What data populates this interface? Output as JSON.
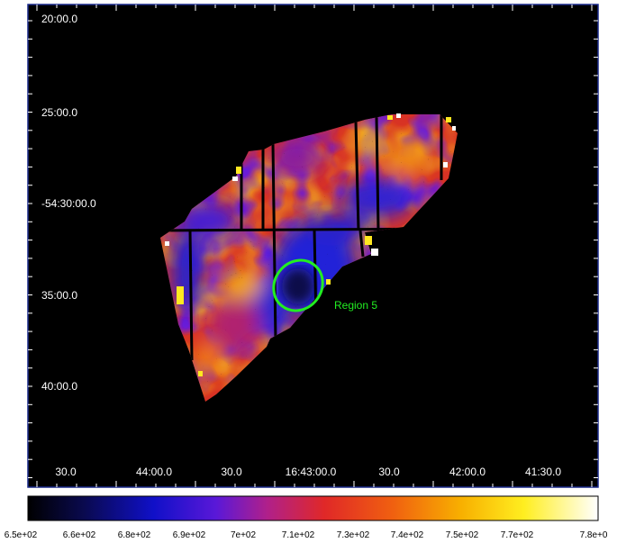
{
  "image": {
    "y_axis_labels": [
      "20:00.0",
      "25:00.0",
      "-54:30:00.0",
      "35:00.0",
      "40:00.0"
    ],
    "x_axis_labels": [
      "30.0",
      "44:00.0",
      "30.0",
      "16:43:00.0",
      "30.0",
      "42:00.0",
      "41:30.0"
    ],
    "region_label": "Region 5",
    "colorbar_labels": [
      "6.5e+02",
      "6.6e+02",
      "6.8e+02",
      "6.9e+02",
      "7e+02",
      "7.1e+02",
      "7.3e+02",
      "7.4e+02",
      "7.5e+02",
      "7.7e+02",
      "7.8e+0"
    ],
    "colors": {
      "background": "#000000",
      "frame": "#1a2a8c",
      "region": "#22ee22",
      "label_text": "#ffffff",
      "colorbar_text": "#000000"
    }
  }
}
